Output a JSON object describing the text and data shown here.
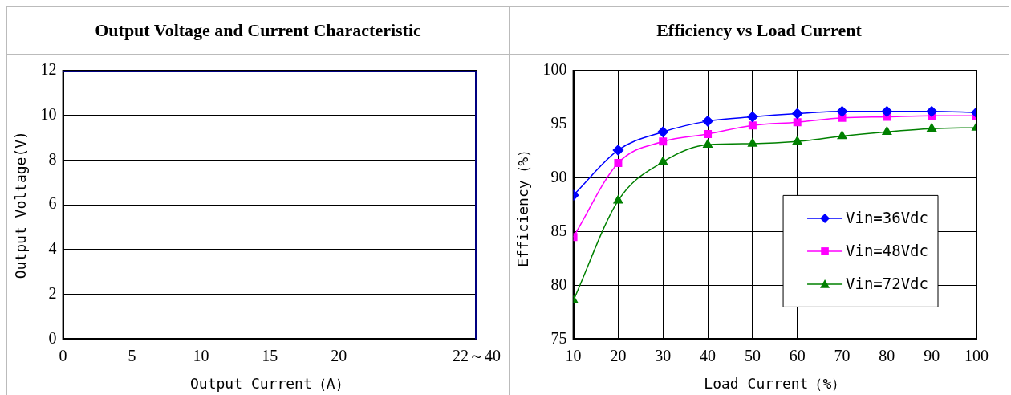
{
  "chart_data": [
    {
      "type": "line",
      "title": "Output Voltage and Current Characteristic",
      "xlabel": "Output Current（A）",
      "ylabel": "Output Voltage(V)",
      "x": [
        0,
        30,
        30
      ],
      "series": [
        {
          "color": "#000080",
          "values": [
            12,
            12,
            0
          ]
        }
      ],
      "xlim": [
        0,
        30
      ],
      "xticks": [
        0,
        5,
        10,
        15,
        20,
        {
          "value": 25,
          "label": null
        },
        {
          "value": 30,
          "label": "22～40"
        }
      ],
      "ylim": [
        0,
        12
      ],
      "yticks": [
        0,
        2,
        4,
        6,
        8,
        10,
        12
      ],
      "grid": true,
      "marker": "none",
      "legend": false
    },
    {
      "type": "line",
      "title": "Efficiency vs Load Current",
      "xlabel": "Load Current（%）",
      "ylabel": "Efficiency（%）",
      "x": [
        10,
        20,
        30,
        40,
        50,
        60,
        70,
        80,
        90,
        100
      ],
      "series": [
        {
          "name": "Vin=36Vdc",
          "color": "#0000ff",
          "marker": "diamond",
          "values": [
            88.4,
            92.6,
            94.3,
            95.3,
            95.7,
            96.0,
            96.2,
            96.2,
            96.2,
            96.1
          ]
        },
        {
          "name": "Vin=48Vdc",
          "color": "#ff00ff",
          "marker": "square",
          "values": [
            84.5,
            91.4,
            93.4,
            94.1,
            94.9,
            95.2,
            95.6,
            95.7,
            95.8,
            95.8
          ]
        },
        {
          "name": "Vin=72Vdc",
          "color": "#008000",
          "marker": "triangle",
          "values": [
            78.6,
            87.9,
            91.5,
            93.1,
            93.2,
            93.4,
            93.9,
            94.3,
            94.6,
            94.7
          ]
        }
      ],
      "xlim": [
        10,
        100
      ],
      "xticks": [
        10,
        20,
        30,
        40,
        50,
        60,
        70,
        80,
        90,
        100
      ],
      "ylim": [
        75,
        100
      ],
      "yticks": [
        75,
        80,
        85,
        90,
        95,
        100
      ],
      "grid": true,
      "legend": "bottom right"
    }
  ]
}
